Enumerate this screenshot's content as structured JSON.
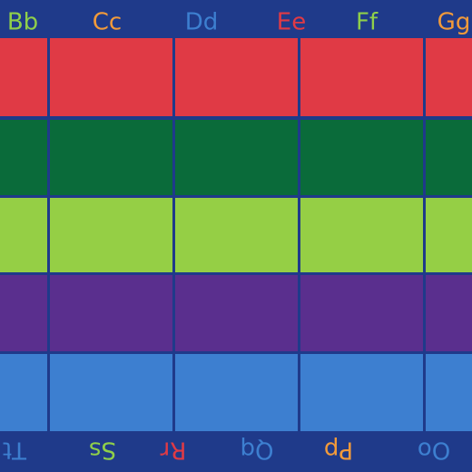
{
  "top_letters": [
    "Bb",
    "Cc",
    "Dd",
    "Ee",
    "Ff",
    "Gg"
  ],
  "bottom_letters": [
    "Tt",
    "Ss",
    "Rr",
    "Qq",
    "Pp",
    "Oo"
  ]
}
